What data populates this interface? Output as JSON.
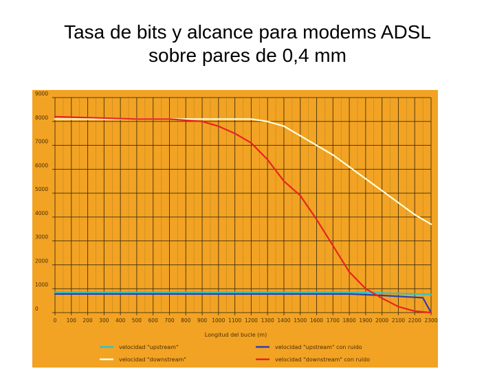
{
  "page": {
    "title_line1": "Tasa de bits y alcance para modems ADSL",
    "title_line2": "sobre pares de 0,4 mm"
  },
  "colors": {
    "chart_background": "#F2A324",
    "grid_major": "#3a2a0a",
    "grid_minor": "#8a6a1a",
    "upstream": "#2EC4C4",
    "downstream": "#FFFFE0",
    "upstream_noise": "#2A3FB0",
    "downstream_noise": "#E8231E"
  },
  "chart_data": {
    "type": "line",
    "title": "",
    "xlabel": "Longitud del bucle (m)",
    "ylabel": "",
    "xlim": [
      0,
      2300
    ],
    "ylim": [
      0,
      9000
    ],
    "grid": true,
    "legend_position": "bottom",
    "x_ticks": [
      "0",
      "100",
      "200",
      "300",
      "400",
      "500",
      "600",
      "700",
      "800",
      "900",
      "1000",
      "1100",
      "1200",
      "1300",
      "1400",
      "1500",
      "1600",
      "1700",
      "1800",
      "1900",
      "2000",
      "2100",
      "2200",
      "2300"
    ],
    "y_ticks": [
      "0",
      "1000",
      "2000",
      "3000",
      "4000",
      "5000",
      "6000",
      "7000",
      "8000",
      "9000"
    ],
    "series": [
      {
        "name": "velocidad \"upstream\"",
        "color_key": "upstream",
        "x": [
          0,
          500,
          1000,
          1500,
          1800,
          2000,
          2200,
          2300
        ],
        "y": [
          850,
          850,
          850,
          850,
          850,
          820,
          780,
          760
        ]
      },
      {
        "name": "velocidad \"downstream\"",
        "color_key": "downstream",
        "x": [
          0,
          500,
          800,
          1000,
          1200,
          1300,
          1400,
          1500,
          1600,
          1700,
          1800,
          1900,
          2000,
          2100,
          2200,
          2300
        ],
        "y": [
          8100,
          8100,
          8100,
          8100,
          8100,
          8000,
          7800,
          7400,
          7000,
          6600,
          6100,
          5600,
          5100,
          4600,
          4100,
          3700
        ]
      },
      {
        "name": "velocidad \"upstream\" con ruido",
        "color_key": "upstream_noise",
        "x": [
          0,
          500,
          1000,
          1500,
          1800,
          1900,
          2000,
          2100,
          2200,
          2250,
          2300
        ],
        "y": [
          780,
          780,
          780,
          780,
          780,
          750,
          720,
          680,
          640,
          620,
          0
        ]
      },
      {
        "name": "velocidad \"downstream\" con ruido",
        "color_key": "downstream_noise",
        "x": [
          0,
          500,
          700,
          900,
          1000,
          1100,
          1200,
          1300,
          1400,
          1500,
          1600,
          1700,
          1800,
          1900,
          2000,
          2100,
          2200,
          2300
        ],
        "y": [
          8200,
          8100,
          8100,
          8000,
          7800,
          7500,
          7100,
          6400,
          5500,
          4900,
          3900,
          2800,
          1700,
          1000,
          600,
          250,
          60,
          0
        ]
      }
    ]
  }
}
